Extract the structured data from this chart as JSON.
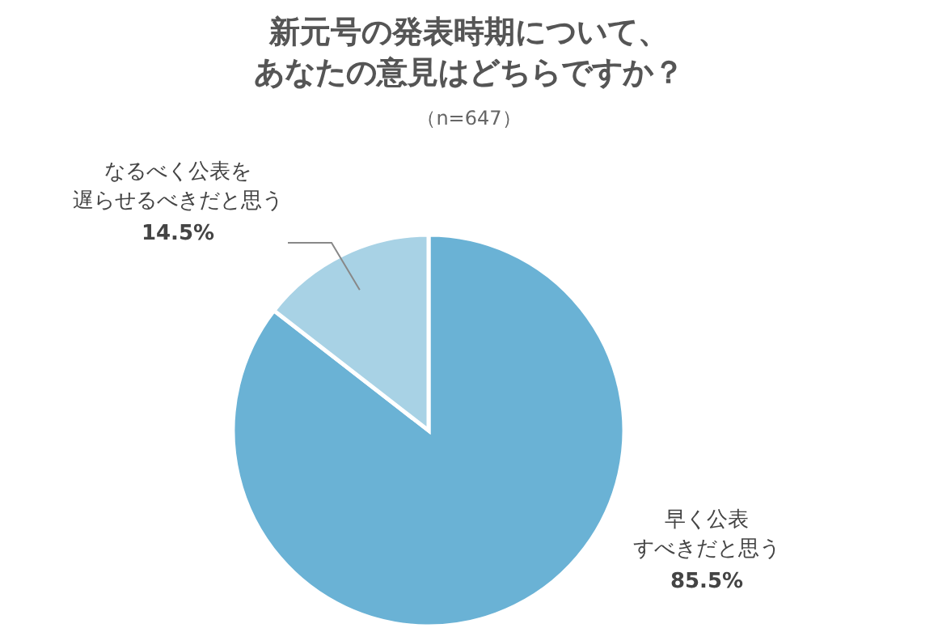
{
  "chart_data": {
    "type": "pie",
    "title": "新元号の発表時期について、あなたの意見はどちらですか？",
    "subtitle": "（n=647）",
    "categories": [
      "早く公表すべきだと思う",
      "なるべく公表を遅らせるべきだと思う"
    ],
    "values": [
      85.5,
      14.5
    ],
    "value_labels": [
      "85.5%",
      "14.5%"
    ],
    "colors": [
      "#6ab2d5",
      "#a8d2e5"
    ]
  }
}
